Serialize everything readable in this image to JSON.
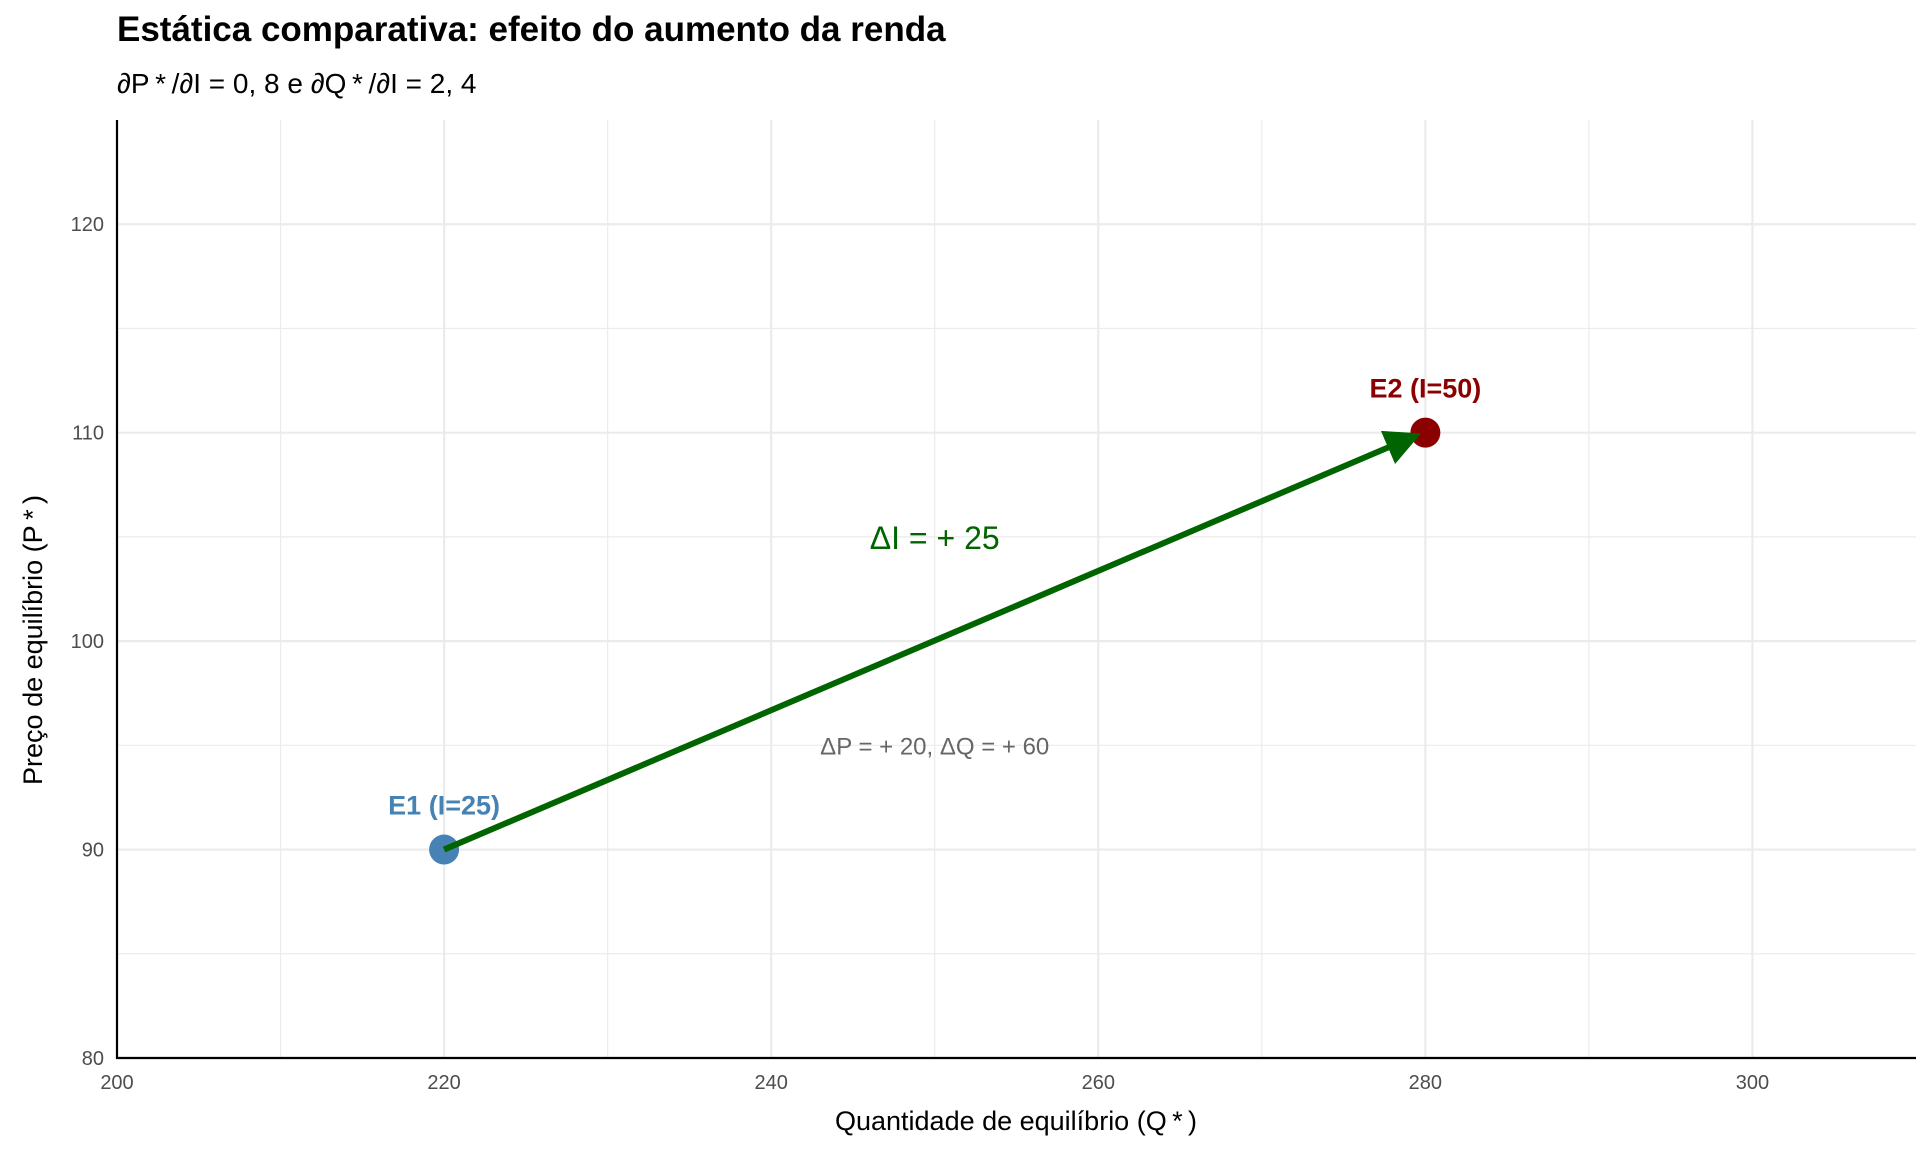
{
  "chart_data": {
    "type": "scatter",
    "title": "Estática comparativa: efeito do aumento da renda",
    "subtitle": "∂P * /∂I = 0, 8  e  ∂Q * /∂I = 2, 4",
    "xlabel": "Quantidade de equilíbrio (Q * )",
    "ylabel": "Preço de equilíbrio (P * )",
    "xlim": [
      200,
      310
    ],
    "ylim": [
      80,
      125
    ],
    "x_ticks": [
      200,
      220,
      240,
      260,
      280,
      300
    ],
    "y_ticks": [
      80,
      90,
      100,
      110,
      120
    ],
    "grid": true,
    "points": [
      {
        "x": 220,
        "y": 90,
        "label": "E1 (I=25)",
        "color": "#4682B4"
      },
      {
        "x": 280,
        "y": 110,
        "label": "E2 (I=50)",
        "color": "#8B0000"
      }
    ],
    "arrow": {
      "from": [
        220,
        90
      ],
      "to": [
        280,
        110
      ],
      "color": "#006400"
    },
    "annotations": [
      {
        "text": "ΔI =  + 25",
        "x": 250,
        "y": 105,
        "color": "#006400"
      },
      {
        "text": "ΔP =  + 20,   ΔQ =  + 60",
        "x": 250,
        "y": 95,
        "color": "#666666"
      }
    ]
  },
  "colors": {
    "background": "#ffffff",
    "grid": "#ebebeb",
    "axis": "#000000",
    "e1": "#4682B4",
    "e2": "#8B0000",
    "arrow": "#006400",
    "delta_text": "#666666"
  }
}
